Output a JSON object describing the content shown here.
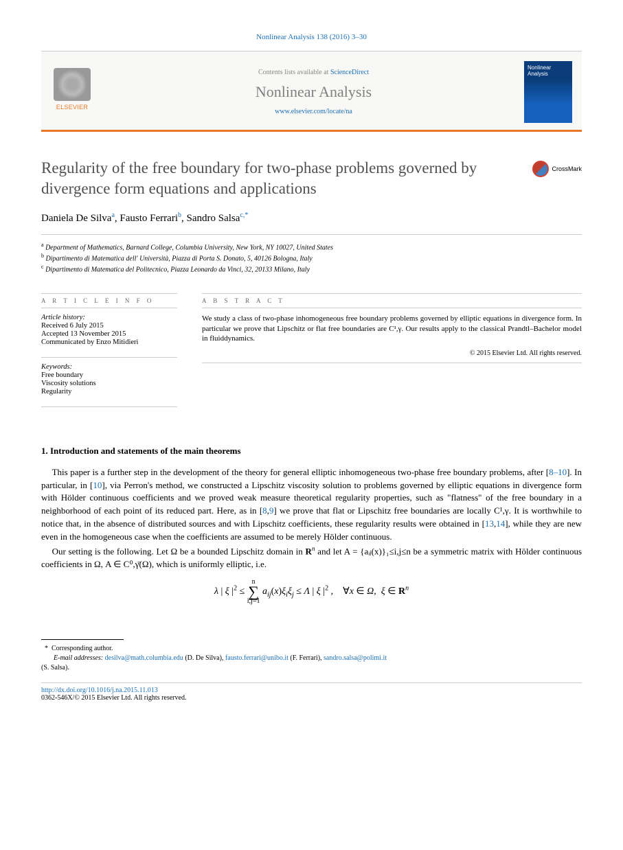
{
  "journal_ref": "Nonlinear Analysis 138 (2016) 3–30",
  "header": {
    "publisher": "ELSEVIER",
    "contents_prefix": "Contents lists available at ",
    "contents_link": "ScienceDirect",
    "journal_name": "Nonlinear Analysis",
    "journal_url": "www.elsevier.com/locate/na",
    "cover_text": "Nonlinear Analysis",
    "colors": {
      "accent": "#e97826",
      "link": "#1a6fb5",
      "title_gray": "#505050",
      "cover_blue": "#0a3d7a"
    }
  },
  "title": "Regularity of the free boundary for two-phase problems governed by divergence form equations and applications",
  "crossmark": "CrossMark",
  "authors_html": "Daniela De Silva<sup>a</sup>, Fausto Ferrari<sup>b</sup>, Sandro Salsa<sup>c,</sup><sup class=\"star\">*</sup>",
  "authors_plain": {
    "a1": "Daniela De Silva",
    "a1_aff": "a",
    "a2": "Fausto Ferrari",
    "a2_aff": "b",
    "a3": "Sandro Salsa",
    "a3_aff": "c,*"
  },
  "affiliations": {
    "a": "Department of Mathematics, Barnard College, Columbia University, New York, NY 10027, United States",
    "b": "Dipartimento di Matematica dell' Università, Piazza di Porta S. Donato, 5, 40126 Bologna, Italy",
    "c": "Dipartimento di Matematica del Politecnico, Piazza Leonardo da Vinci, 32, 20133 Milano, Italy"
  },
  "article_info": {
    "heading": "A R T I C L E   I N F O",
    "history_title": "Article history:",
    "received": "Received 6 July 2015",
    "accepted": "Accepted 13 November 2015",
    "communicated": "Communicated by Enzo Mitidieri",
    "keywords_title": "Keywords:",
    "kw1": "Free boundary",
    "kw2": "Viscosity solutions",
    "kw3": "Regularity"
  },
  "abstract": {
    "heading": "A B S T R A C T",
    "text": "We study a class of two-phase inhomogeneous free boundary problems governed by elliptic equations in divergence form. In particular we prove that Lipschitz or flat free boundaries are C¹,γ. Our results apply to the classical Prandtl–Bachelor model in fluiddynamics.",
    "copyright": "© 2015 Elsevier Ltd. All rights reserved."
  },
  "section1": {
    "heading": "1. Introduction and statements of the main theorems",
    "p1_a": "This paper is a further step in the development of the theory for general elliptic inhomogeneous two-phase free boundary problems, after [",
    "ref1": "8–10",
    "p1_b": "]. In particular, in [",
    "ref2": "10",
    "p1_c": "], via Perron's method, we constructed a Lipschitz viscosity solution to problems governed by elliptic equations in divergence form with Hölder continuous coefficients and we proved weak measure theoretical regularity properties, such as \"flatness\" of the free boundary in a neighborhood of each point of its reduced part. Here, as in [",
    "ref3": "8",
    "ref3b": "9",
    "p1_d": "] we prove that flat or Lipschitz free boundaries are locally C¹,γ. It is worthwhile to notice that, in the absence of distributed sources and with Lipschitz coefficients, these regularity results were obtained in [",
    "ref4": "13",
    "ref4b": "14",
    "p1_e": "], while they are new even in the homogeneous case when the coefficients are assumed to be merely Hölder continuous.",
    "p2_a": "Our setting is the following. Let Ω be a bounded Lipschitz domain in ",
    "p2_b": " and let A = {aᵢⱼ(x)}₁≤i,j≤n be a symmetric matrix with Hölder continuous coefficients in Ω, A ∈ C⁰,γ̄(Ω), which is uniformly elliptic, i.e."
  },
  "equation": "λ | ξ |² ≤ ∑ aᵢⱼ(x)ξᵢξⱼ ≤ Λ | ξ |² ,    ∀x ∈ Ω,  ξ ∈ ℝⁿ",
  "equation_sub": "i,j=1",
  "equation_sup": "n",
  "footnotes": {
    "corr": "Corresponding author.",
    "email_label": "E-mail addresses: ",
    "e1": "desilva@math.columbia.edu",
    "e1_who": " (D. De Silva), ",
    "e2": "fausto.ferrari@unibo.it",
    "e2_who": " (F. Ferrari), ",
    "e3": "sandro.salsa@polimi.it",
    "e3_who": "(S. Salsa)."
  },
  "footer": {
    "doi": "http://dx.doi.org/10.1016/j.na.2015.11.013",
    "copyright": "0362-546X/© 2015 Elsevier Ltd. All rights reserved."
  }
}
